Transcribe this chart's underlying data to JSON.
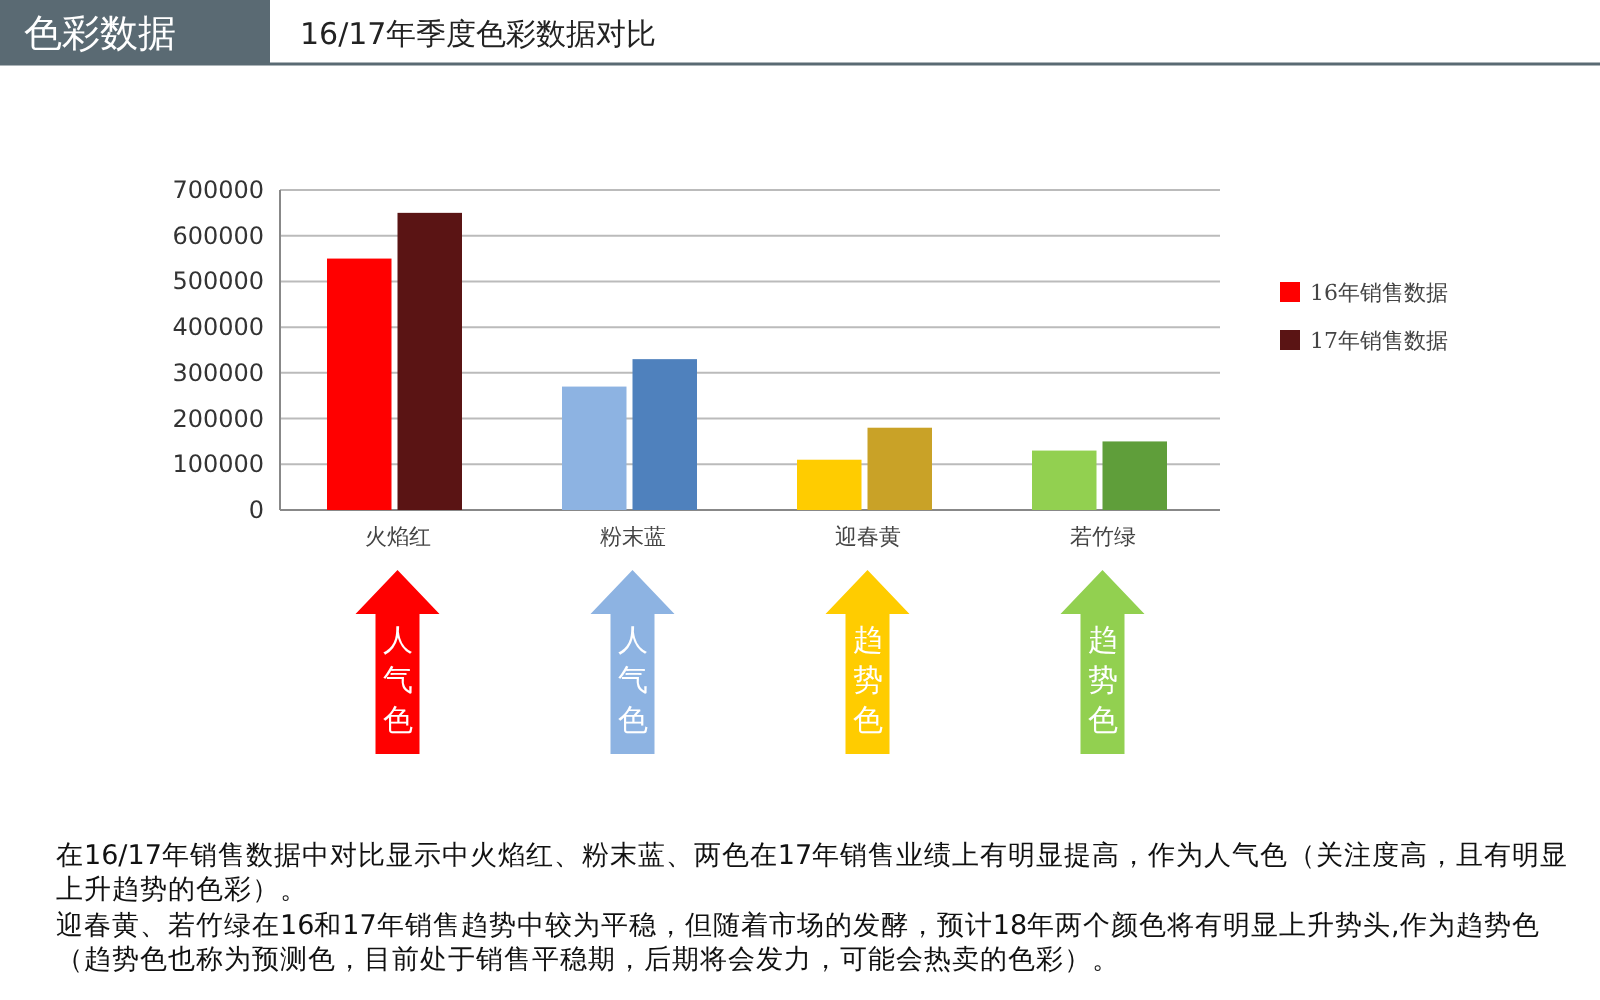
{
  "chart_data": {
    "type": "bar",
    "title": "16/17年季度色彩数据对比",
    "subtitle": "色彩数据",
    "categories": [
      "火焰红",
      "粉末蓝",
      "迎春黄",
      "若竹绿"
    ],
    "series": [
      {
        "name": "16年销售数据",
        "color": "#ff0000",
        "colors": [
          "#ff0000",
          "#8db3e2",
          "#ffcc00",
          "#92d050"
        ],
        "values": [
          550000,
          270000,
          110000,
          130000
        ]
      },
      {
        "name": "17年销售数据",
        "color": "#5a1414",
        "colors": [
          "#5a1414",
          "#4f81bd",
          "#c9a227",
          "#5f9e3a"
        ],
        "values": [
          650000,
          330000,
          180000,
          150000
        ]
      }
    ],
    "ylim": [
      0,
      700000
    ],
    "yticks": [
      0,
      100000,
      200000,
      300000,
      400000,
      500000,
      600000,
      700000
    ],
    "grid": "y",
    "legend": "right",
    "annotations": [
      "人气色",
      "人气色",
      "趋势色",
      "趋势色",
      "在16/17年销售数据中对比显示中火焰红、粉末蓝、两色在17年销售业绩上有明显提高，作为人气色（关注度高，且有明显上升趋势的色彩）。",
      "迎春黄、若竹绿在16和17年销售趋势中较为平稳，但随着市场的发酵，预计18年两个颜色将有明显上升势头,作为趋势色（趋势色也称为预测色，目前处于销售平稳期，后期将会发力，可能会热卖的色彩）。"
    ]
  }
}
